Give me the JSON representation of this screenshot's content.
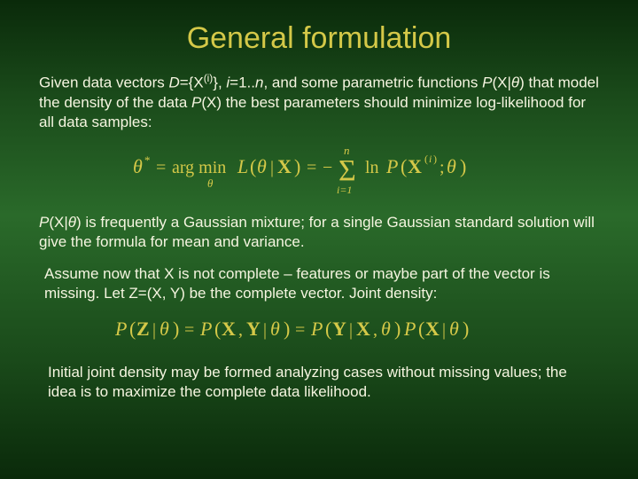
{
  "title": "General formulation",
  "p1": {
    "t1": "Given data vectors ",
    "D": "D",
    "eq1": "={X",
    "sup_i": "(i)",
    "eq2": "}, ",
    "i": "i",
    "eq3": "=1..",
    "n": "n",
    "t2": ", and some parametric functions ",
    "PXtheta": "P",
    "PXtheta2": "(X|",
    "theta": "θ",
    "PXtheta3": ")",
    "t3": " that model the density of the data ",
    "PX": "P",
    "PX2": "(X)",
    "t4": " the best parameters should minimize log-likelihood for all data samples:"
  },
  "p2": {
    "PXtheta": "P",
    "PXtheta2": "(X|",
    "theta": "θ",
    "PXtheta3": ")",
    "t1": " is frequently a Gaussian mixture; for a single Gaussian standard solution will give the formula for mean and variance."
  },
  "p3": {
    "t1": "Assume now that X is not complete – features or maybe part of the vector is missing. Let Z=(X, Y) be the complete vector. Joint density:"
  },
  "p4": {
    "t1": "Initial joint density may be formed analyzing cases without missing values; the idea is to maximize the complete data likelihood."
  },
  "colors": {
    "title": "#d4c848",
    "text": "#f5f5e0",
    "formula": "#d4c848",
    "bg_gradient": [
      "#0a2a0a",
      "#1a4a1a",
      "#2a6a2a",
      "#1a4a1a",
      "#0a2a0a"
    ]
  },
  "typography": {
    "title_size_pt": 26,
    "body_size_pt": 13,
    "font_family": "Arial",
    "math_font": "Times New Roman"
  },
  "formula1": {
    "type": "equation",
    "tex": "\\theta^* = \\arg\\min_\\theta L(\\theta|\\mathbf{X}) = -\\sum_{i=1}^{n} \\ln P(\\mathbf{X}^{(i)};\\theta)",
    "color": "#d4c848"
  },
  "formula2": {
    "type": "equation",
    "tex": "P(\\mathbf{Z}|\\theta) = P(\\mathbf{X},\\mathbf{Y}|\\theta) = P(\\mathbf{Y}|\\mathbf{X},\\theta)P(\\mathbf{X}|\\theta)",
    "color": "#d4c848"
  }
}
